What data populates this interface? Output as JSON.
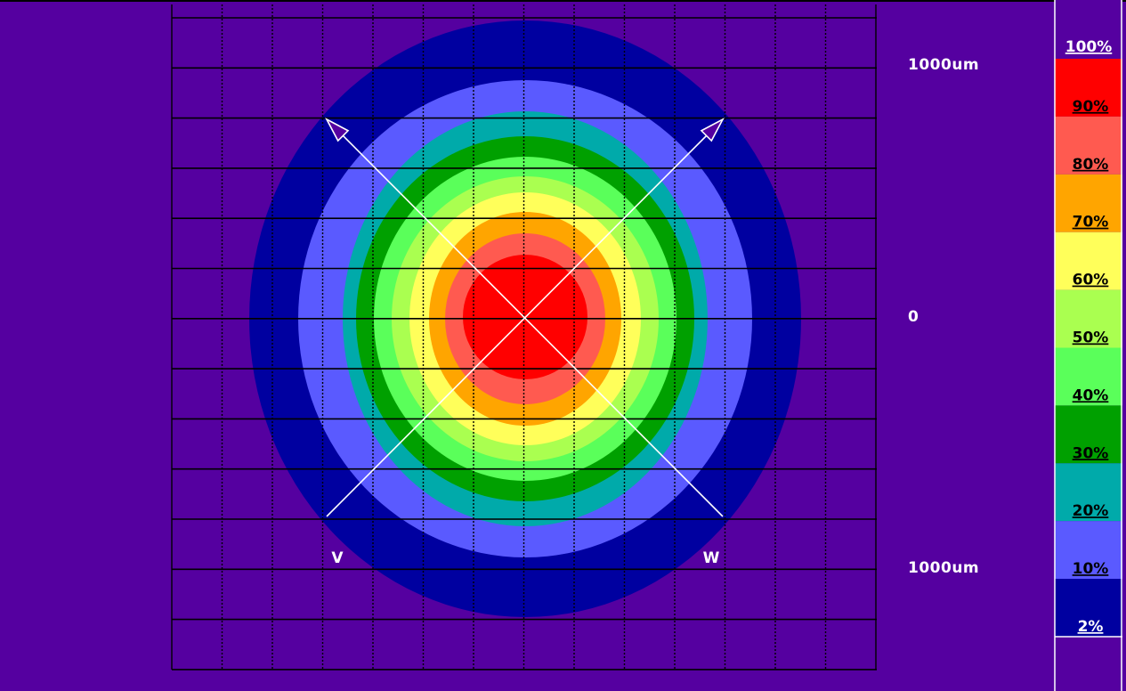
{
  "chart_data": {
    "type": "heatmap",
    "title": "",
    "colorbar": {
      "top_label": "100%",
      "bands": [
        {
          "label": "90%",
          "color": "#ff0000"
        },
        {
          "label": "80%",
          "color": "#ff5a50"
        },
        {
          "label": "70%",
          "color": "#ffa500"
        },
        {
          "label": "60%",
          "color": "#ffff5a"
        },
        {
          "label": "50%",
          "color": "#aaff50"
        },
        {
          "label": "40%",
          "color": "#5aff5a"
        },
        {
          "label": "30%",
          "color": "#00a000"
        },
        {
          "label": "20%",
          "color": "#00aaaa"
        },
        {
          "label": "10%",
          "color": "#5a5aff"
        },
        {
          "label": "2%",
          "color": "#0000a0"
        }
      ]
    },
    "contour_levels": [
      2,
      10,
      20,
      30,
      40,
      50,
      60,
      70,
      80,
      90
    ],
    "background_color": "#5500a0",
    "scale_labels": {
      "top": "1000um",
      "middle": "0",
      "bottom": "1000um"
    },
    "axes": [
      {
        "name": "V",
        "direction": "bottom-left to top-right"
      },
      {
        "name": "W",
        "direction": "bottom-right to top-left"
      }
    ],
    "grid": true
  }
}
